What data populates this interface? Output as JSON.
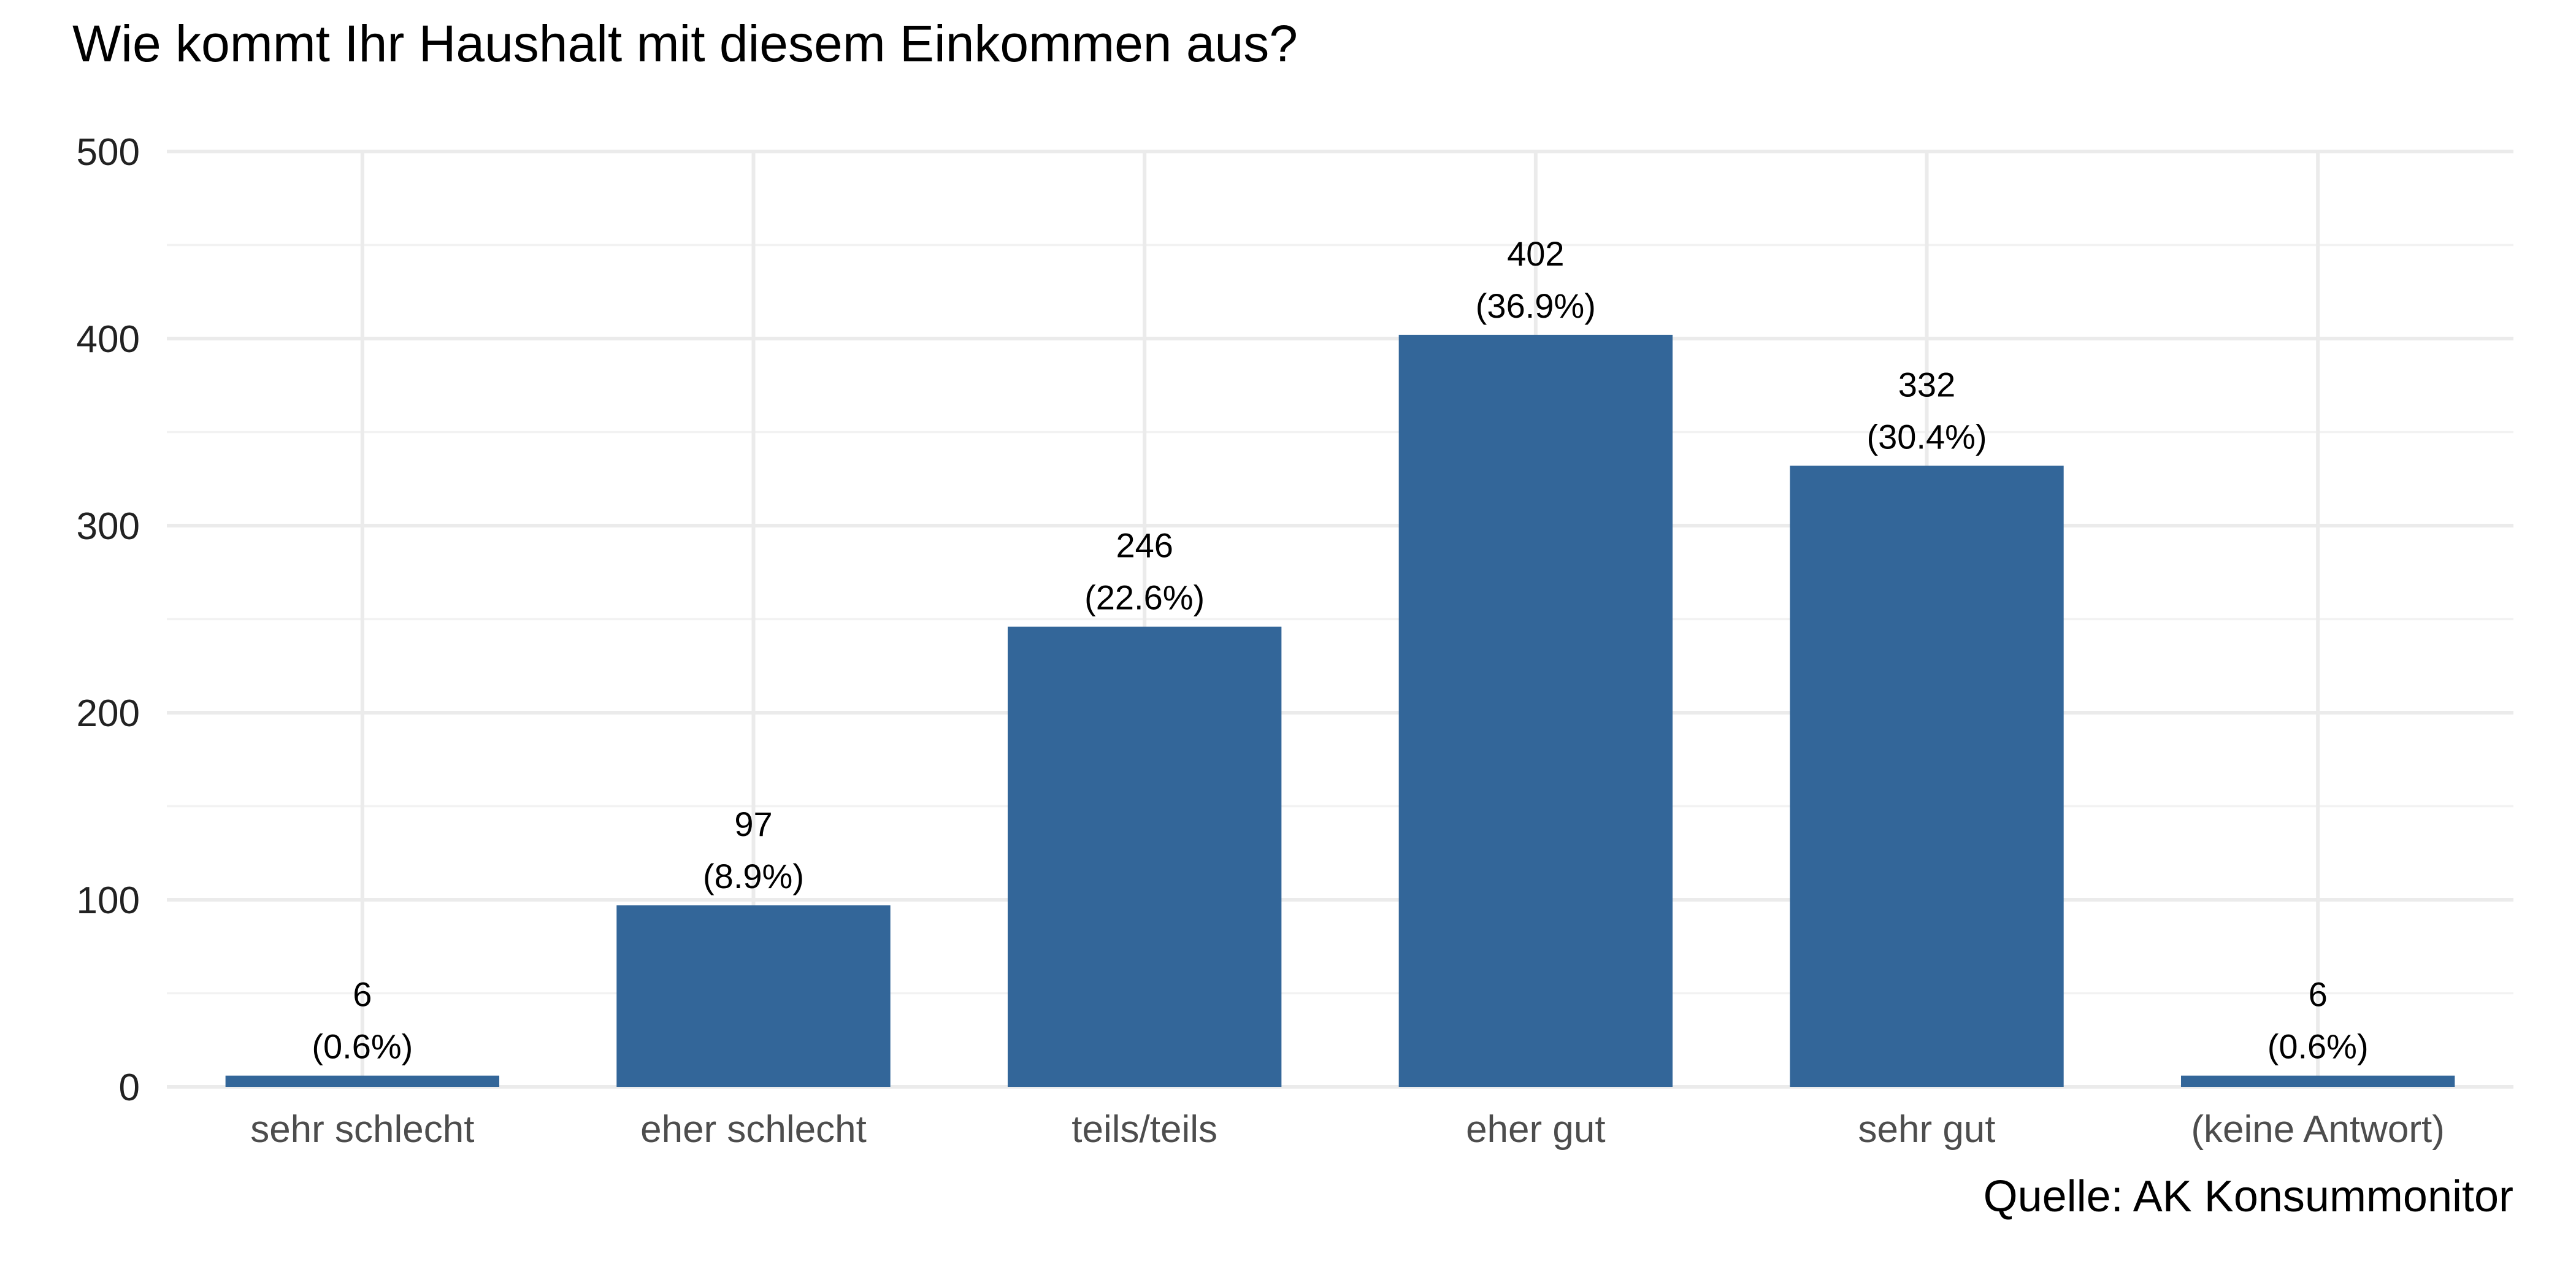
{
  "chart_data": {
    "type": "bar",
    "title": "Wie kommt Ihr Haushalt mit diesem Einkommen aus?",
    "caption": "Quelle: AK Konsummonitor",
    "xlabel": "",
    "ylabel": "",
    "categories": [
      "sehr schlecht",
      "eher schlecht",
      "teils/teils",
      "eher gut",
      "sehr gut",
      "(keine Antwort)"
    ],
    "values": [
      6,
      97,
      246,
      402,
      332,
      6
    ],
    "labels": [
      {
        "count": "6",
        "percent": "(0.6%)"
      },
      {
        "count": "97",
        "percent": "(8.9%)"
      },
      {
        "count": "246",
        "percent": "(22.6%)"
      },
      {
        "count": "402",
        "percent": "(36.9%)"
      },
      {
        "count": "332",
        "percent": "(30.4%)"
      },
      {
        "count": "6",
        "percent": "(0.6%)"
      }
    ],
    "ylim": [
      0,
      500
    ],
    "yticks": [
      0,
      100,
      200,
      300,
      400,
      500
    ],
    "grid": true,
    "legend": "none",
    "bar_color": "#336699"
  }
}
